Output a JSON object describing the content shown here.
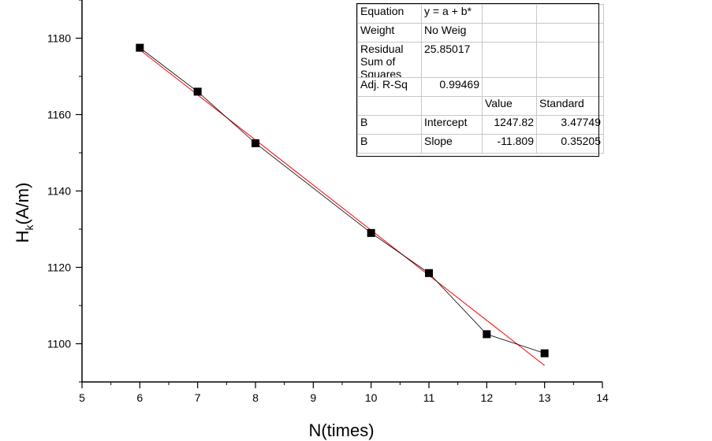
{
  "chart_data": {
    "type": "scatter",
    "xlabel": "N(times)",
    "ylabel": {
      "main": "H",
      "sub": "k",
      "rest": "(A/m)"
    },
    "xlim": [
      5,
      14
    ],
    "ylim": [
      1090,
      1190
    ],
    "x_ticks": [
      5,
      6,
      7,
      8,
      9,
      10,
      11,
      12,
      13,
      14
    ],
    "y_ticks": [
      1100,
      1120,
      1140,
      1160,
      1180
    ],
    "grid": false,
    "series": [
      {
        "marker": "square",
        "color": "#000000",
        "connected": true,
        "x": [
          6,
          7,
          8,
          10,
          11,
          12,
          13
        ],
        "y": [
          1177.5,
          1166,
          1152.5,
          1129,
          1118.5,
          1102.5,
          1097.5
        ]
      }
    ],
    "fit": {
      "color": "#ff0000",
      "intercept": 1247.82,
      "slope": -11.809,
      "x_range": [
        6,
        13
      ]
    }
  },
  "fit_table": {
    "equation_label": "Equation",
    "equation_value": "y = a + b*",
    "weight_label": "Weight",
    "weight_value": "No Weig",
    "rss_label": "Residual Sum of Squares",
    "rss_value": "25.85017",
    "adjr_label": "Adj. R-Sq",
    "adjr_value": "0.99469",
    "value_header": "Value",
    "standard_header": "Standard",
    "rows": [
      {
        "group": "B",
        "name": "Intercept",
        "value": "1247.82",
        "standard": "3.47749"
      },
      {
        "group": "B",
        "name": "Slope",
        "value": "-11.809",
        "standard": "0.35205"
      }
    ]
  }
}
